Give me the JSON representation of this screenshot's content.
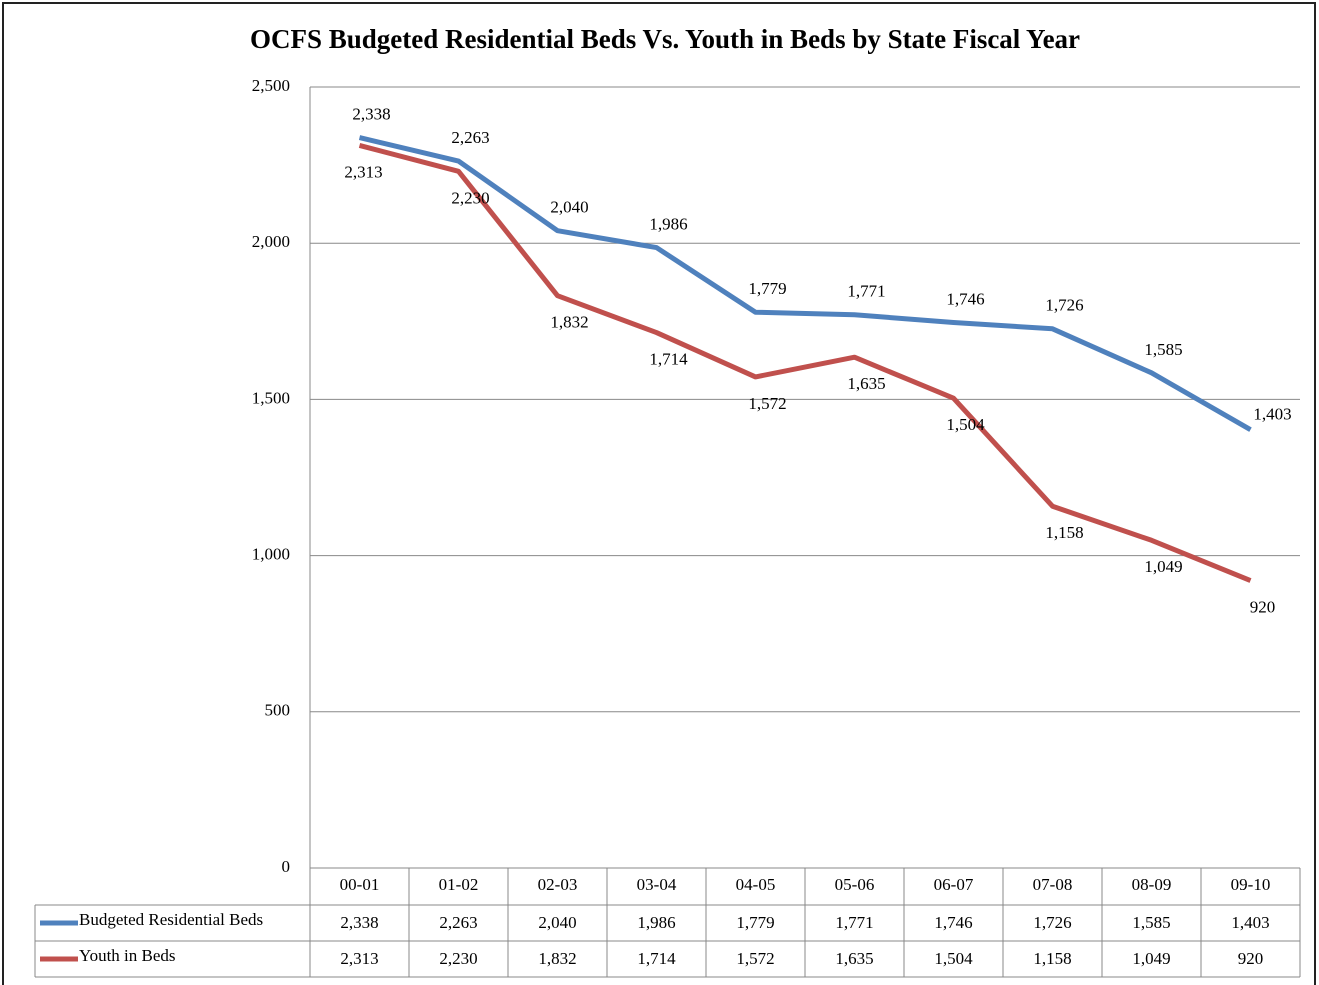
{
  "chart_data": {
    "type": "line",
    "title": "OCFS Budgeted Residential Beds Vs. Youth in Beds by State Fiscal Year",
    "categories": [
      "00-01",
      "01-02",
      "02-03",
      "03-04",
      "04-05",
      "05-06",
      "06-07",
      "07-08",
      "08-09",
      "09-10"
    ],
    "series": [
      {
        "name": "Budgeted Residential Beds",
        "color": "#4f81bd",
        "values": [
          2338,
          2263,
          2040,
          1986,
          1779,
          1771,
          1746,
          1726,
          1585,
          1403
        ],
        "value_labels": [
          "2,338",
          "2,263",
          "2,040",
          "1,986",
          "1,779",
          "1,771",
          "1,746",
          "1,726",
          "1,585",
          "1,403"
        ]
      },
      {
        "name": "Youth in Beds",
        "color": "#c0504d",
        "values": [
          2313,
          2230,
          1832,
          1714,
          1572,
          1635,
          1504,
          1158,
          1049,
          920
        ],
        "value_labels": [
          "2,313",
          "2,230",
          "1,832",
          "1,714",
          "1,572",
          "1,635",
          "1,504",
          "1,158",
          "1,049",
          "920"
        ]
      }
    ],
    "ylim": [
      0,
      2500
    ],
    "yticks": [
      0,
      500,
      {
        "value": 1000,
        "label": "1,000"
      },
      {
        "value": 1500,
        "label": "1,500"
      },
      {
        "value": 2000,
        "label": "2,000"
      },
      {
        "value": 2500,
        "label": "2,500"
      }
    ],
    "grid": true
  }
}
